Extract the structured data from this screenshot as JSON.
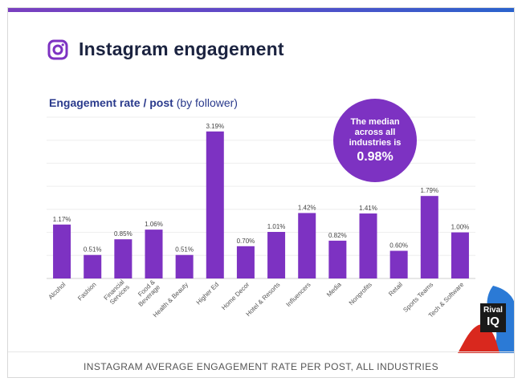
{
  "page": {
    "heading": "Instagram engagement",
    "subtitle_bold": "Engagement rate / post",
    "subtitle_rest": "(by follower)",
    "median_text": "The median across all industries is",
    "median_value": "0.98%",
    "caption": "INSTAGRAM AVERAGE ENGAGEMENT RATE PER POST, ALL INDUSTRIES",
    "logo_line1": "Rival",
    "logo_line2": "IQ"
  },
  "colors": {
    "bar": "#7d32c2",
    "median_bg": "#7d32c2",
    "heading": "#1b2340",
    "subtitle": "#2a3a8c",
    "logo_red": "#d9281e",
    "logo_blue": "#2b7ad6"
  },
  "icons": {
    "brand": "instagram-icon"
  },
  "chart_data": {
    "type": "bar",
    "title": "Engagement rate / post (by follower)",
    "categories": [
      "Alcohol",
      "Fashion",
      "Financial Services",
      "Food & Beverage",
      "Health & Beauty",
      "Higher Ed",
      "Home Decor",
      "Hotel & Resorts",
      "Influencers",
      "Media",
      "Nonprofits",
      "Retail",
      "Sports Teams",
      "Tech & Software"
    ],
    "values": [
      1.17,
      0.51,
      0.85,
      1.06,
      0.51,
      3.19,
      0.7,
      1.01,
      1.42,
      0.82,
      1.41,
      0.6,
      1.79,
      1.0
    ],
    "value_labels": [
      "1.17%",
      "0.51%",
      "0.85%",
      "1.06%",
      "0.51%",
      "3.19%",
      "0.70%",
      "1.01%",
      "1.42%",
      "0.82%",
      "1.41%",
      "0.60%",
      "1.79%",
      "1.00%"
    ],
    "xlabel": "",
    "ylabel": "",
    "ylim": [
      0,
      3.5
    ],
    "grid": true
  }
}
